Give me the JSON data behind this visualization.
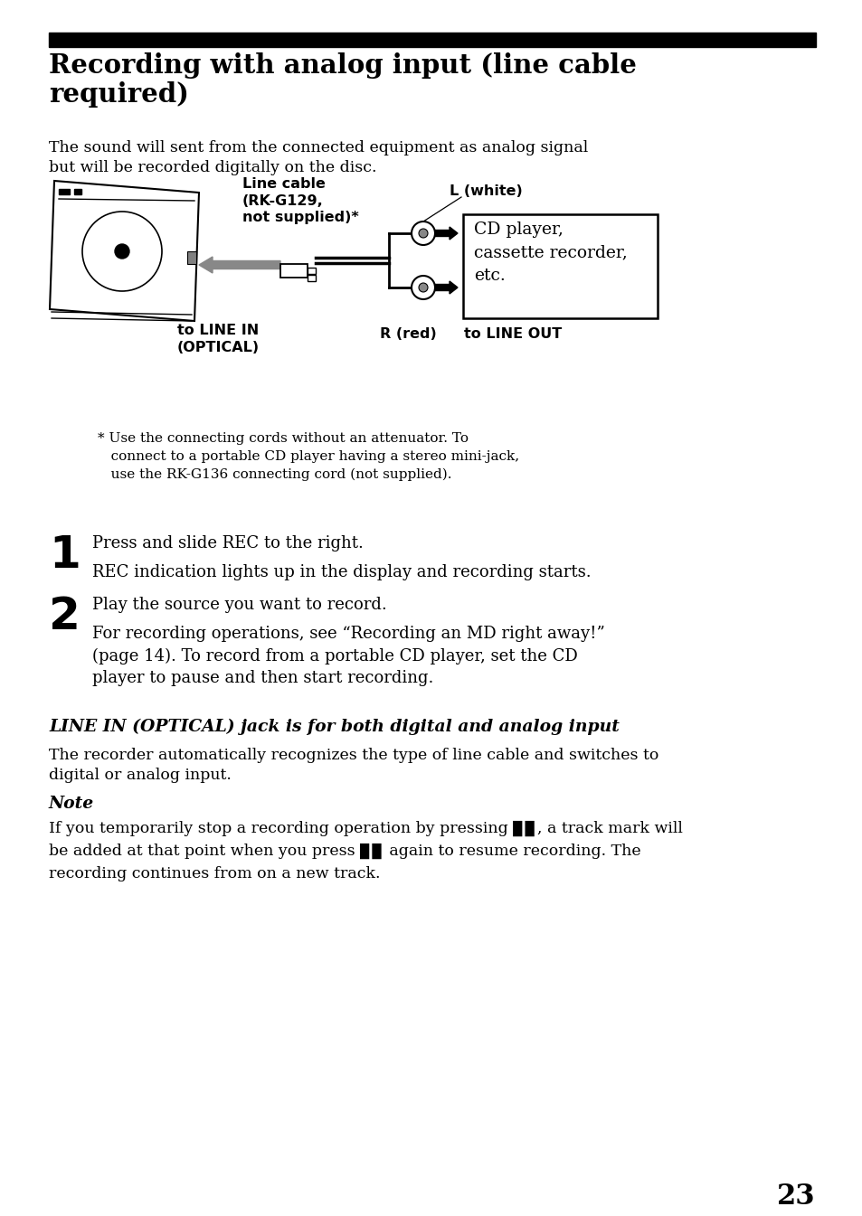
{
  "bg_color": "#ffffff",
  "page_number": "23",
  "title": "Recording with analog input (line cable\nrequired)",
  "intro_text": "The sound will sent from the connected equipment as analog signal\nbut will be recorded digitally on the disc.",
  "line_cable_label": "Line cable\n(RK-G129,\nnot supplied)*",
  "l_white_label": "L (white)",
  "r_red_label": "R (red)",
  "to_line_in_label": "to LINE IN\n(OPTICAL)",
  "to_line_out_label": "to LINE OUT",
  "cd_player_box_text": "CD player,\ncassette recorder,\netc.",
  "footnote_star": "* Use the connecting cords without an attenuator. To",
  "footnote_line2": "   connect to a portable CD player having a stereo mini-jack,",
  "footnote_line3": "   use the RK-G136 connecting cord (not supplied).",
  "step1_num": "1",
  "step1_main": "Press and slide REC to the right.",
  "step1_sub": "REC indication lights up in the display and recording starts.",
  "step2_num": "2",
  "step2_main": "Play the source you want to record.",
  "step2_sub": "For recording operations, see “Recording an MD right away!”\n(page 14). To record from a portable CD player, set the CD\nplayer to pause and then start recording.",
  "section_title": "LINE IN (OPTICAL) jack is for both digital and analog input",
  "section_body": "The recorder automatically recognizes the type of line cable and switches to\ndigital or analog input.",
  "note_title": "Note",
  "note_body_line1": "If you temporarily stop a recording operation by pressing ▊▊, a track mark will",
  "note_body_line2": "be added at that point when you press ▊▊ again to resume recording. The",
  "note_body_line3": "recording continues from on a new track."
}
